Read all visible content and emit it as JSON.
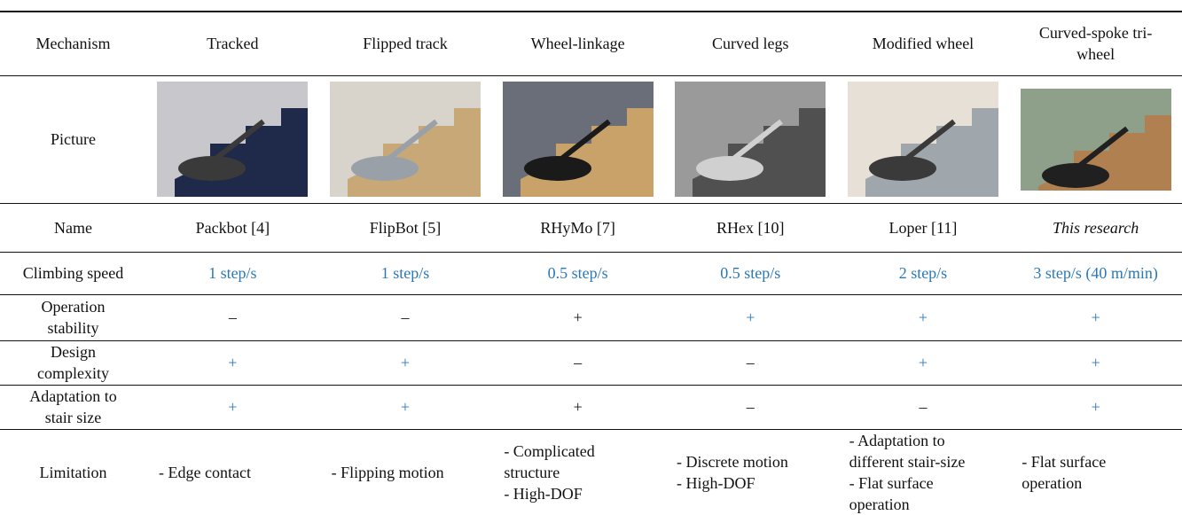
{
  "table": {
    "header": [
      "Mechanism",
      "Tracked",
      "Flipped track",
      "Wheel-linkage",
      "Curved legs",
      "Modified wheel",
      "Curved-spoke tri-wheel"
    ],
    "picture_label": "Picture",
    "rows": [
      {
        "label": "Name",
        "cells": [
          "Packbot [4]",
          "FlipBot [5]",
          "RHyMo [7]",
          "RHex [10]",
          "Loper [11]",
          "This research"
        ]
      },
      {
        "label": "Climbing speed",
        "cells": [
          "1 step/s",
          "1 step/s",
          "0.5 step/s",
          "0.5 step/s",
          "2 step/s",
          "3 step/s (40 m/min)"
        ]
      },
      {
        "label": "Operation stability",
        "cells": [
          "–",
          "–",
          "+",
          "+",
          "+",
          "+"
        ]
      },
      {
        "label": "Design complexity",
        "cells": [
          "+",
          "+",
          "–",
          "–",
          "+",
          "+"
        ]
      },
      {
        "label": "Adaptation to stair size",
        "cells": [
          "+",
          "+",
          "+",
          "–",
          "–",
          "+"
        ]
      },
      {
        "label": "Limitation",
        "cells": [
          [
            "- Edge contact"
          ],
          [
            "- Flipping motion"
          ],
          [
            "- Complicated structure",
            "- High-DOF"
          ],
          [
            "- Discrete motion",
            "- High-DOF"
          ],
          [
            "- Adaptation to different stair-size",
            "- Flat surface operation"
          ],
          [
            "- Flat surface operation"
          ]
        ]
      }
    ]
  }
}
